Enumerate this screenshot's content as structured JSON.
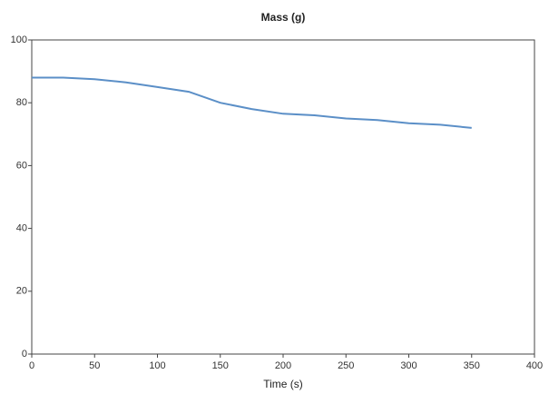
{
  "chart_data": {
    "type": "line",
    "title": "Mass (g)",
    "x_label": "Time (s)",
    "x": [
      0,
      25,
      50,
      75,
      100,
      125,
      150,
      175,
      200,
      225,
      250,
      275,
      300,
      325,
      350
    ],
    "series": [
      {
        "name": "Mass",
        "color": "#5b8fc7",
        "values": [
          88,
          88,
          87.5,
          86.5,
          85,
          83.5,
          80,
          78,
          76.5,
          76,
          75,
          74.5,
          73.5,
          73,
          72
        ]
      }
    ],
    "xlim": [
      0,
      400
    ],
    "xticks": [
      0,
      50,
      100,
      150,
      200,
      250,
      300,
      350,
      400
    ],
    "ylim": [
      0,
      100
    ],
    "yticks": [
      0,
      20,
      40,
      60,
      80,
      100
    ]
  }
}
